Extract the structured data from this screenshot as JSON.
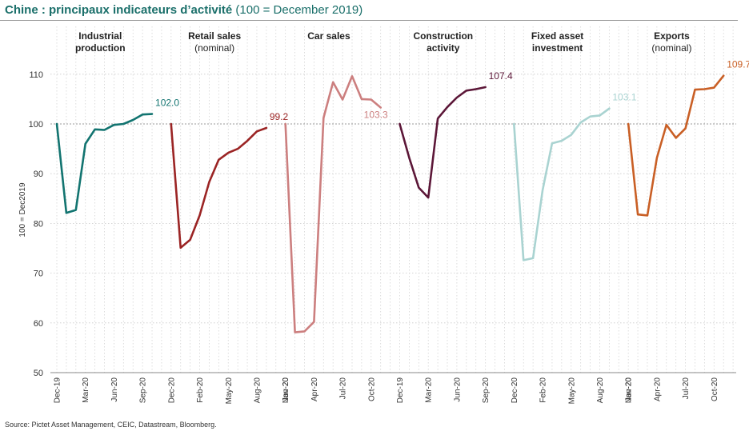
{
  "title_bold": "Chine : principaux indicateurs d’activité",
  "title_rest": "(100 = December 2019)",
  "source": "Source: Pictet Asset Management, CEIC, Datastream, Bloomberg.",
  "chart_data": {
    "type": "line",
    "ylabel": "100 = Dec2019",
    "ylim": [
      50,
      110
    ],
    "yticks": [
      50,
      60,
      70,
      80,
      90,
      100,
      110
    ],
    "reference_line": 100,
    "grid": true,
    "panels": [
      {
        "label_lines": [
          "Industrial",
          "production"
        ],
        "label_bold": [
          true,
          true
        ],
        "x_ticks": [
          "Dec-19",
          "Mar-20",
          "Jun-20",
          "Sep-20"
        ],
        "color": "#127470",
        "end_label": "102.0",
        "values": [
          100,
          82.1,
          82.7,
          96.0,
          98.9,
          98.8,
          99.8,
          100.0,
          100.8,
          101.9,
          102.0
        ]
      },
      {
        "label_lines": [
          "Retail sales",
          "(nominal)"
        ],
        "label_bold": [
          true,
          false
        ],
        "x_ticks": [
          "Dec-20",
          "Feb-20",
          "May-20",
          "Aug-20",
          "Nov-20"
        ],
        "color": "#9b2424",
        "end_label": "99.2",
        "values": [
          100,
          75.1,
          76.7,
          81.6,
          88.3,
          92.8,
          94.2,
          95.0,
          96.6,
          98.5,
          99.2
        ]
      },
      {
        "label_lines": [
          "Car sales"
        ],
        "label_bold": [
          true
        ],
        "x_ticks": [
          "Jan-20",
          "Apr-20",
          "Jul-20",
          "Oct-20"
        ],
        "color": "#cc7f7f",
        "end_label": "103.3",
        "values": [
          100,
          58.1,
          58.3,
          60.2,
          101.2,
          108.4,
          104.9,
          109.6,
          105.0,
          104.9,
          103.3
        ]
      },
      {
        "label_lines": [
          "Construction",
          "activity"
        ],
        "label_bold": [
          true,
          true
        ],
        "x_ticks": [
          "Dec-19",
          "Mar-20",
          "Jun-20",
          "Sep-20"
        ],
        "color": "#5c1738",
        "end_label": "107.4",
        "values": [
          100,
          93.2,
          87.2,
          85.2,
          101.1,
          103.4,
          105.3,
          106.7,
          107.0,
          107.4
        ]
      },
      {
        "label_lines": [
          "Fixed asset",
          "investment"
        ],
        "label_bold": [
          true,
          true
        ],
        "x_ticks": [
          "Dec-20",
          "Feb-20",
          "May-20",
          "Aug-20",
          "Nov-20"
        ],
        "color": "#a9d3d1",
        "end_label": "103.1",
        "values": [
          100,
          72.6,
          73.0,
          86.6,
          96.1,
          96.6,
          97.8,
          100.3,
          101.5,
          101.7,
          103.1
        ]
      },
      {
        "label_lines": [
          "Exports",
          "(nominal)"
        ],
        "label_bold": [
          true,
          false
        ],
        "x_ticks": [
          "Jan-20",
          "Apr-20",
          "Jul-20",
          "Oct-20"
        ],
        "color": "#c95f25",
        "end_label": "109.7",
        "values": [
          100,
          81.8,
          81.6,
          93.2,
          99.8,
          97.2,
          99.1,
          106.9,
          107.0,
          107.3,
          109.7
        ]
      }
    ]
  }
}
